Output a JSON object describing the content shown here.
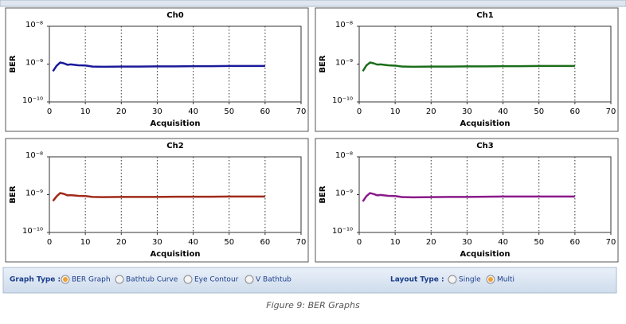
{
  "chart_data": [
    {
      "type": "line",
      "title": "Ch0",
      "xlabel": "Acquisition",
      "ylabel": "BER",
      "yscale": "log",
      "grid": "x",
      "x": [
        1,
        2,
        3,
        4,
        5,
        6,
        8,
        10,
        12,
        15,
        20,
        25,
        30,
        35,
        40,
        45,
        50,
        55,
        60
      ],
      "values": [
        6.5e-10,
        9e-10,
        1.1e-09,
        1.05e-09,
        9.6e-10,
        9.8e-10,
        9.3e-10,
        9.2e-10,
        8.6e-10,
        8.5e-10,
        8.6e-10,
        8.6e-10,
        8.7e-10,
        8.7e-10,
        8.8e-10,
        8.8e-10,
        8.9e-10,
        8.9e-10,
        8.9e-10
      ],
      "color": "#1a1a9a",
      "xlim": [
        0,
        70
      ],
      "xticks": [
        0,
        10,
        20,
        30,
        40,
        50,
        60,
        70
      ],
      "ylim": [
        1e-10,
        1e-08
      ],
      "yticks": [
        {
          "value": 1e-10,
          "label": "10⁻¹⁰"
        },
        {
          "value": 1e-09,
          "label": "10⁻⁹"
        },
        {
          "value": 1e-08,
          "label": "10⁻⁸"
        }
      ]
    },
    {
      "type": "line",
      "title": "Ch1",
      "xlabel": "Acquisition",
      "ylabel": "BER",
      "yscale": "log",
      "grid": "x",
      "x": [
        1,
        2,
        3,
        4,
        5,
        6,
        8,
        10,
        12,
        15,
        20,
        25,
        30,
        35,
        40,
        45,
        50,
        55,
        60
      ],
      "values": [
        6.5e-10,
        9.2e-10,
        1.1e-09,
        1.05e-09,
        9.7e-10,
        9.8e-10,
        9.3e-10,
        9.1e-10,
        8.6e-10,
        8.5e-10,
        8.6e-10,
        8.6e-10,
        8.7e-10,
        8.7e-10,
        8.8e-10,
        8.8e-10,
        8.9e-10,
        8.9e-10,
        8.9e-10
      ],
      "color": "#1a6e1a",
      "xlim": [
        0,
        70
      ],
      "xticks": [
        0,
        10,
        20,
        30,
        40,
        50,
        60,
        70
      ],
      "ylim": [
        1e-10,
        1e-08
      ],
      "yticks": [
        {
          "value": 1e-10,
          "label": "10⁻¹⁰"
        },
        {
          "value": 1e-09,
          "label": "10⁻⁹"
        },
        {
          "value": 1e-08,
          "label": "10⁻⁸"
        }
      ]
    },
    {
      "type": "line",
      "title": "Ch2",
      "xlabel": "Acquisition",
      "ylabel": "BER",
      "yscale": "log",
      "grid": "x",
      "x": [
        1,
        2,
        3,
        4,
        5,
        6,
        8,
        10,
        12,
        15,
        20,
        25,
        30,
        35,
        40,
        45,
        50,
        55,
        60
      ],
      "values": [
        6.8e-10,
        9e-10,
        1.1e-09,
        1.05e-09,
        9.6e-10,
        9.7e-10,
        9.3e-10,
        9.2e-10,
        8.7e-10,
        8.6e-10,
        8.7e-10,
        8.7e-10,
        8.7e-10,
        8.8e-10,
        8.8e-10,
        8.8e-10,
        8.9e-10,
        8.9e-10,
        8.9e-10
      ],
      "color": "#a02a1a",
      "xlim": [
        0,
        70
      ],
      "xticks": [
        0,
        10,
        20,
        30,
        40,
        50,
        60,
        70
      ],
      "ylim": [
        1e-10,
        1e-08
      ],
      "yticks": [
        {
          "value": 1e-10,
          "label": "10⁻¹⁰"
        },
        {
          "value": 1e-09,
          "label": "10⁻⁹"
        },
        {
          "value": 1e-08,
          "label": "10⁻⁸"
        }
      ]
    },
    {
      "type": "line",
      "title": "Ch3",
      "xlabel": "Acquisition",
      "ylabel": "BER",
      "yscale": "log",
      "grid": "x",
      "x": [
        1,
        2,
        3,
        4,
        5,
        6,
        8,
        10,
        12,
        15,
        20,
        25,
        30,
        35,
        40,
        45,
        50,
        55,
        60
      ],
      "values": [
        6.6e-10,
        9.1e-10,
        1.1e-09,
        1.04e-09,
        9.6e-10,
        9.8e-10,
        9.3e-10,
        9.2e-10,
        8.6e-10,
        8.5e-10,
        8.6e-10,
        8.7e-10,
        8.7e-10,
        8.8e-10,
        8.9e-10,
        8.9e-10,
        8.9e-10,
        8.9e-10,
        8.9e-10
      ],
      "color": "#8a1a8a",
      "xlim": [
        0,
        70
      ],
      "xticks": [
        0,
        10,
        20,
        30,
        40,
        50,
        60,
        70
      ],
      "ylim": [
        1e-10,
        1e-08
      ],
      "yticks": [
        {
          "value": 1e-10,
          "label": "10⁻¹⁰"
        },
        {
          "value": 1e-09,
          "label": "10⁻⁹"
        },
        {
          "value": 1e-08,
          "label": "10⁻⁸"
        }
      ]
    }
  ],
  "controls": {
    "graph_type": {
      "label": "Graph Type :",
      "options": [
        "BER Graph",
        "Bathtub Curve",
        "Eye Contour",
        "V Bathtub"
      ],
      "selected": 0
    },
    "layout_type": {
      "label": "Layout Type :",
      "options": [
        "Single",
        "Multi"
      ],
      "selected": 1
    }
  },
  "caption": "Figure 9: BER Graphs"
}
